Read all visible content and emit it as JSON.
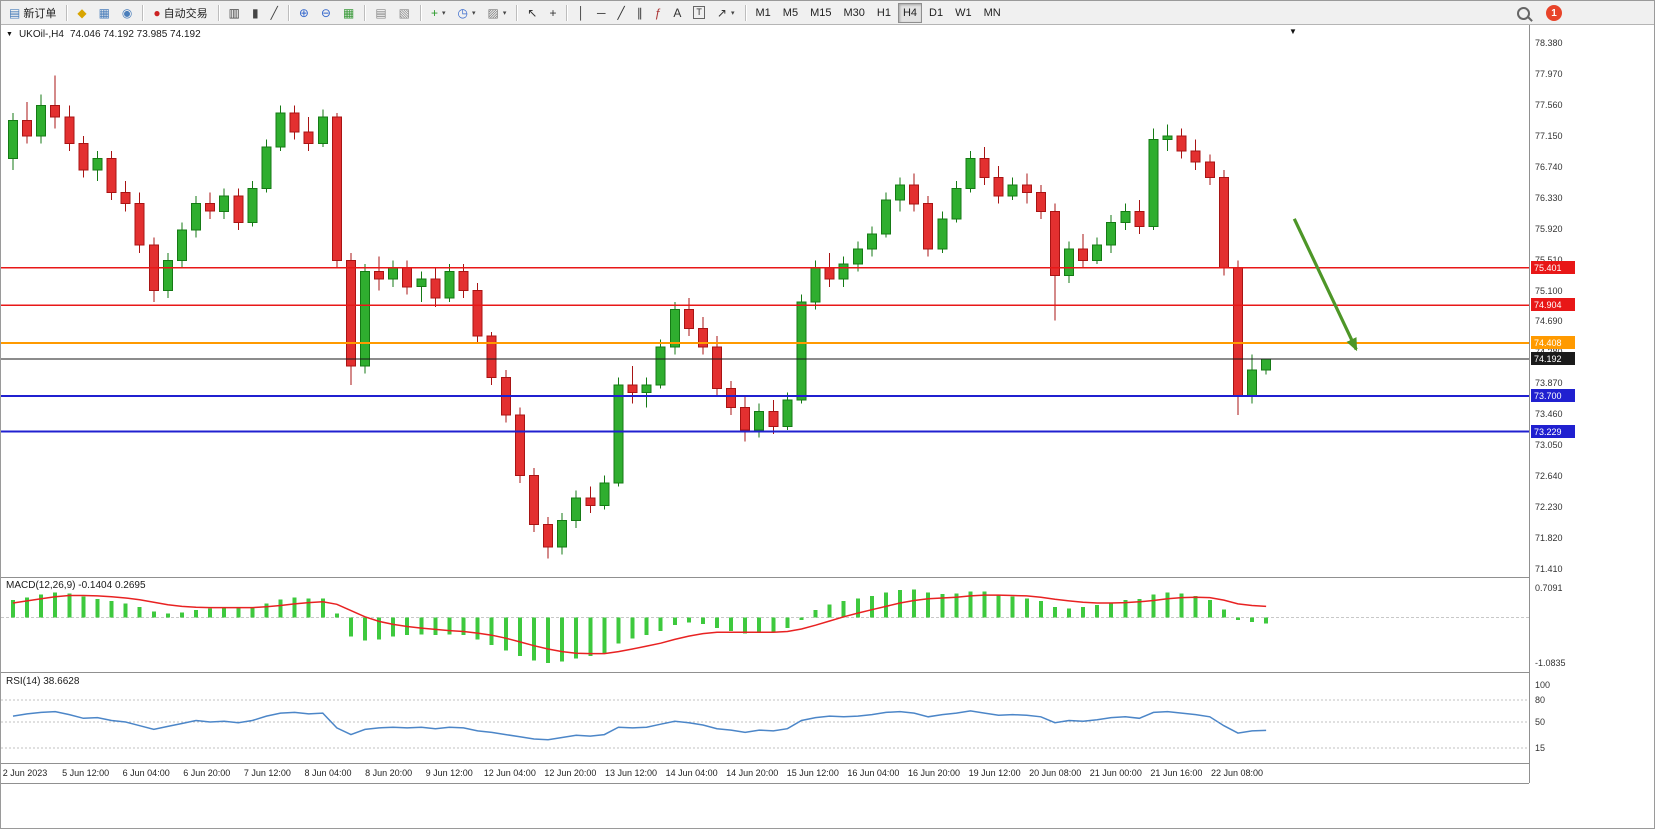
{
  "colors": {
    "up": "#2fae2f",
    "up_stroke": "#157a15",
    "down": "#e33030",
    "down_stroke": "#a81414",
    "macd_hist": "#3ec93e",
    "macd_signal": "#e82222",
    "rsi_line": "#4c86c8"
  },
  "toolbar": {
    "groups": [
      [
        {
          "name": "new-order-button",
          "icon": "new-order-icon",
          "glyph": "▤",
          "color": "#4a7ebb",
          "label": "新订单"
        }
      ],
      [
        {
          "name": "profile-button",
          "icon": "profile-icon",
          "glyph": "◆",
          "color": "#d8a400"
        },
        {
          "name": "charts-button",
          "icon": "charts-icon",
          "glyph": "▦",
          "color": "#4a7ebb"
        },
        {
          "name": "market-watch-button",
          "icon": "market-watch-icon",
          "glyph": "◉",
          "color": "#4a7ebb"
        }
      ],
      [
        {
          "name": "auto-trading-button",
          "icon": "auto-trading-icon",
          "glyph": "●",
          "color": "#cc2222",
          "label": "自动交易"
        }
      ],
      [
        {
          "name": "bar-chart-button",
          "icon": "bar-chart-icon",
          "glyph": "▥",
          "color": "#444444"
        },
        {
          "name": "candlestick-chart-button",
          "icon": "candlestick-icon",
          "glyph": "▮",
          "color": "#444444"
        },
        {
          "name": "line-chart-button",
          "icon": "line-chart-icon",
          "glyph": "╱",
          "color": "#444444"
        }
      ],
      [
        {
          "name": "zoom-in-button",
          "icon": "zoom-in-icon",
          "glyph": "⊕",
          "color": "#3366cc"
        },
        {
          "name": "zoom-out-button",
          "icon": "zoom-out-icon",
          "glyph": "⊖",
          "color": "#3366cc"
        },
        {
          "name": "tile-windows-button",
          "icon": "tile-windows-icon",
          "glyph": "▦",
          "color": "#3a9a3a"
        }
      ],
      [
        {
          "name": "arrange-windows-button",
          "icon": "arrange-windows-icon",
          "glyph": "▤",
          "color": "#888888"
        },
        {
          "name": "cascade-windows-button",
          "icon": "cascade-windows-icon",
          "glyph": "▧",
          "color": "#888888"
        }
      ],
      [
        {
          "name": "add-indicator-button",
          "icon": "add-indicator-icon",
          "glyph": "+",
          "color": "#2a9a2a",
          "dd": true
        },
        {
          "name": "period-button",
          "icon": "period-icon",
          "glyph": "◷",
          "color": "#3366cc",
          "dd": true
        },
        {
          "name": "template-button",
          "icon": "template-icon",
          "glyph": "▨",
          "color": "#777777",
          "dd": true
        }
      ],
      [
        {
          "name": "cursor-button",
          "icon": "cursor-icon",
          "glyph": "↖",
          "color": "#333333"
        },
        {
          "name": "crosshair-button",
          "icon": "crosshair-icon",
          "glyph": "+",
          "color": "#333333"
        }
      ],
      [
        {
          "name": "vertical-line-button",
          "icon": "vertical-line-icon",
          "glyph": "│",
          "color": "#333333"
        },
        {
          "name": "horizontal-line-button",
          "icon": "horizontal-line-icon",
          "glyph": "─",
          "color": "#333333"
        },
        {
          "name": "trendline-button",
          "icon": "trendline-icon",
          "glyph": "╱",
          "color": "#333333"
        },
        {
          "name": "channel-button",
          "icon": "channel-icon",
          "glyph": "∥",
          "color": "#333333"
        },
        {
          "name": "fibonacci-button",
          "icon": "fibonacci-icon",
          "glyph": "ƒ",
          "color": "#aa3333"
        },
        {
          "name": "text-button",
          "icon": "text-icon",
          "glyph": "A",
          "color": "#333333"
        },
        {
          "name": "text-label-button",
          "icon": "text-label-icon",
          "glyph": "T",
          "color": "#333333",
          "boxed": true
        },
        {
          "name": "arrows-button",
          "icon": "arrows-icon",
          "glyph": "↗",
          "color": "#333333",
          "dd": true
        }
      ],
      [
        {
          "name": "timeframe-m1-button",
          "label": "M1"
        },
        {
          "name": "timeframe-m5-button",
          "label": "M5"
        },
        {
          "name": "timeframe-m15-button",
          "label": "M15"
        },
        {
          "name": "timeframe-m30-button",
          "label": "M30"
        },
        {
          "name": "timeframe-h1-button",
          "label": "H1"
        },
        {
          "name": "timeframe-h4-button",
          "label": "H4",
          "active": true
        },
        {
          "name": "timeframe-d1-button",
          "label": "D1"
        },
        {
          "name": "timeframe-w1-button",
          "label": "W1"
        },
        {
          "name": "timeframe-mn-button",
          "label": "MN"
        }
      ]
    ],
    "right": [
      {
        "name": "search-button",
        "kind": "search"
      },
      {
        "name": "notification-badge",
        "kind": "badge",
        "label": "1"
      }
    ]
  },
  "chart": {
    "header_symbol": "UKOil-,H4",
    "header_ohlc": "74.046 74.192 73.985 74.192",
    "y_axis": [
      "78.380",
      "77.970",
      "77.560",
      "77.150",
      "76.740",
      "76.330",
      "75.920",
      "75.510",
      "75.100",
      "74.690",
      "74.280",
      "73.870",
      "73.460",
      "73.050",
      "72.640",
      "72.230",
      "71.820",
      "71.410"
    ],
    "x_labels": [
      "2 Jun 2023",
      "5 Jun 12:00",
      "6 Jun 04:00",
      "6 Jun 20:00",
      "7 Jun 12:00",
      "8 Jun 04:00",
      "8 Jun 20:00",
      "9 Jun 12:00",
      "12 Jun 04:00",
      "12 Jun 20:00",
      "13 Jun 12:00",
      "14 Jun 04:00",
      "14 Jun 20:00",
      "15 Jun 12:00",
      "16 Jun 04:00",
      "16 Jun 20:00",
      "19 Jun 12:00",
      "20 Jun 08:00",
      "21 Jun 00:00",
      "21 Jun 16:00",
      "22 Jun 08:00"
    ],
    "price_lines": [
      {
        "price": 75.401,
        "label": "75.401",
        "color": "#e81717",
        "width": 1.4
      },
      {
        "price": 74.904,
        "label": "74.904",
        "color": "#e81717",
        "width": 1.4
      },
      {
        "price": 74.408,
        "label": "74.408",
        "color": "#ff9a00",
        "width": 2
      },
      {
        "price": 74.192,
        "label": "74.192",
        "color": "#1a1a1a",
        "width": 1,
        "is_current_price": true
      },
      {
        "price": 73.7,
        "label": "73.700",
        "color": "#2020d0",
        "width": 2
      },
      {
        "price": 73.229,
        "label": "73.229",
        "color": "#2020d0",
        "width": 2
      }
    ],
    "arrow": {
      "from_bar": 91,
      "from_price": 76.05,
      "to_bar": 95.4,
      "to_price": 74.32,
      "color": "#4d9627"
    }
  },
  "macd": {
    "header": "MACD(12,26,9) -0.1404 0.2695",
    "axis": [
      "0.7091",
      "-1.0835"
    ]
  },
  "rsi": {
    "header": "RSI(14) 38.6628",
    "axis": [
      "100",
      "80",
      "50",
      "15"
    ],
    "levels": [
      80,
      50,
      15
    ]
  },
  "chart_data": {
    "type": "candlestick",
    "symbol": "UKOil-",
    "period": "H4",
    "main": {
      "type": "candlestick",
      "ylim": [
        71.41,
        78.38
      ],
      "ohlc": [
        [
          76.85,
          77.45,
          76.7,
          77.35
        ],
        [
          77.35,
          77.6,
          77.05,
          77.15
        ],
        [
          77.15,
          77.7,
          77.05,
          77.55
        ],
        [
          77.55,
          77.95,
          77.25,
          77.4
        ],
        [
          77.4,
          77.55,
          76.95,
          77.05
        ],
        [
          77.05,
          77.15,
          76.6,
          76.7
        ],
        [
          76.7,
          76.95,
          76.55,
          76.85
        ],
        [
          76.85,
          76.95,
          76.3,
          76.4
        ],
        [
          76.4,
          76.55,
          76.15,
          76.25
        ],
        [
          76.25,
          76.4,
          75.6,
          75.7
        ],
        [
          75.7,
          75.8,
          74.95,
          75.1
        ],
        [
          75.1,
          75.6,
          75.0,
          75.5
        ],
        [
          75.5,
          76.0,
          75.4,
          75.9
        ],
        [
          75.9,
          76.35,
          75.8,
          76.25
        ],
        [
          76.25,
          76.4,
          76.05,
          76.15
        ],
        [
          76.15,
          76.45,
          76.05,
          76.35
        ],
        [
          76.35,
          76.45,
          75.9,
          76.0
        ],
        [
          76.0,
          76.55,
          75.95,
          76.45
        ],
        [
          76.45,
          77.1,
          76.4,
          77.0
        ],
        [
          77.0,
          77.55,
          76.95,
          77.45
        ],
        [
          77.45,
          77.55,
          77.1,
          77.2
        ],
        [
          77.2,
          77.4,
          76.95,
          77.05
        ],
        [
          77.05,
          77.5,
          77.0,
          77.4
        ],
        [
          77.4,
          77.45,
          75.4,
          75.5
        ],
        [
          75.5,
          75.6,
          73.85,
          74.1
        ],
        [
          74.1,
          75.45,
          74.0,
          75.35
        ],
        [
          75.35,
          75.55,
          75.1,
          75.25
        ],
        [
          75.25,
          75.5,
          75.15,
          75.4
        ],
        [
          75.4,
          75.5,
          75.05,
          75.15
        ],
        [
          75.15,
          75.35,
          74.95,
          75.25
        ],
        [
          75.25,
          75.4,
          74.88,
          75.0
        ],
        [
          75.0,
          75.45,
          74.95,
          75.35
        ],
        [
          75.35,
          75.45,
          75.0,
          75.1
        ],
        [
          75.1,
          75.2,
          74.4,
          74.5
        ],
        [
          74.5,
          74.55,
          73.85,
          73.95
        ],
        [
          73.95,
          74.05,
          73.35,
          73.45
        ],
        [
          73.45,
          73.55,
          72.55,
          72.65
        ],
        [
          72.65,
          72.75,
          71.9,
          72.0
        ],
        [
          72.0,
          72.1,
          71.55,
          71.7
        ],
        [
          71.7,
          72.15,
          71.6,
          72.05
        ],
        [
          72.05,
          72.45,
          71.95,
          72.35
        ],
        [
          72.35,
          72.5,
          72.15,
          72.25
        ],
        [
          72.25,
          72.65,
          72.2,
          72.55
        ],
        [
          72.55,
          73.95,
          72.5,
          73.85
        ],
        [
          73.85,
          74.1,
          73.6,
          73.75
        ],
        [
          73.75,
          73.95,
          73.55,
          73.85
        ],
        [
          73.85,
          74.45,
          73.8,
          74.35
        ],
        [
          74.35,
          74.95,
          74.25,
          74.85
        ],
        [
          74.85,
          75.0,
          74.5,
          74.6
        ],
        [
          74.6,
          74.75,
          74.25,
          74.35
        ],
        [
          74.35,
          74.5,
          73.7,
          73.8
        ],
        [
          73.8,
          73.9,
          73.45,
          73.55
        ],
        [
          73.55,
          73.7,
          73.1,
          73.25
        ],
        [
          73.25,
          73.6,
          73.15,
          73.5
        ],
        [
          73.5,
          73.65,
          73.2,
          73.3
        ],
        [
          73.3,
          73.75,
          73.25,
          73.65
        ],
        [
          73.65,
          75.05,
          73.6,
          74.95
        ],
        [
          74.95,
          75.5,
          74.85,
          75.4
        ],
        [
          75.4,
          75.6,
          75.15,
          75.25
        ],
        [
          75.25,
          75.55,
          75.15,
          75.45
        ],
        [
          75.45,
          75.75,
          75.35,
          75.65
        ],
        [
          75.65,
          75.95,
          75.55,
          75.85
        ],
        [
          75.85,
          76.4,
          75.8,
          76.3
        ],
        [
          76.3,
          76.6,
          76.15,
          76.5
        ],
        [
          76.5,
          76.65,
          76.15,
          76.25
        ],
        [
          76.25,
          76.35,
          75.55,
          75.65
        ],
        [
          75.65,
          76.15,
          75.6,
          76.05
        ],
        [
          76.05,
          76.55,
          76.0,
          76.45
        ],
        [
          76.45,
          76.95,
          76.4,
          76.85
        ],
        [
          76.85,
          77.0,
          76.5,
          76.6
        ],
        [
          76.6,
          76.75,
          76.25,
          76.35
        ],
        [
          76.35,
          76.6,
          76.3,
          76.5
        ],
        [
          76.5,
          76.65,
          76.25,
          76.4
        ],
        [
          76.4,
          76.5,
          76.05,
          76.15
        ],
        [
          76.15,
          76.25,
          74.7,
          75.3
        ],
        [
          75.3,
          75.75,
          75.2,
          75.65
        ],
        [
          75.65,
          75.85,
          75.4,
          75.5
        ],
        [
          75.5,
          75.8,
          75.45,
          75.7
        ],
        [
          75.7,
          76.1,
          75.6,
          76.0
        ],
        [
          76.0,
          76.25,
          75.9,
          76.15
        ],
        [
          76.15,
          76.3,
          75.85,
          75.95
        ],
        [
          75.95,
          77.25,
          75.9,
          77.1
        ],
        [
          77.1,
          77.3,
          76.95,
          77.15
        ],
        [
          77.15,
          77.25,
          76.85,
          76.95
        ],
        [
          76.95,
          77.1,
          76.7,
          76.8
        ],
        [
          76.8,
          76.9,
          76.5,
          76.6
        ],
        [
          76.6,
          76.7,
          75.3,
          75.4
        ],
        [
          75.4,
          75.5,
          73.45,
          73.7
        ],
        [
          73.7,
          74.25,
          73.6,
          74.05
        ],
        [
          74.046,
          74.192,
          73.985,
          74.192
        ]
      ]
    },
    "macd": {
      "type": "bar+line",
      "scale": [
        0.7091,
        -1.0835
      ],
      "histogram": [
        0.42,
        0.48,
        0.55,
        0.6,
        0.58,
        0.5,
        0.45,
        0.4,
        0.34,
        0.26,
        0.15,
        0.1,
        0.12,
        0.18,
        0.22,
        0.24,
        0.24,
        0.26,
        0.34,
        0.44,
        0.48,
        0.46,
        0.46,
        0.1,
        -0.45,
        -0.55,
        -0.52,
        -0.45,
        -0.42,
        -0.4,
        -0.42,
        -0.4,
        -0.42,
        -0.52,
        -0.65,
        -0.78,
        -0.92,
        -1.02,
        -1.08,
        -1.05,
        -0.98,
        -0.92,
        -0.85,
        -0.62,
        -0.5,
        -0.42,
        -0.32,
        -0.18,
        -0.12,
        -0.15,
        -0.25,
        -0.32,
        -0.38,
        -0.36,
        -0.34,
        -0.25,
        -0.05,
        0.18,
        0.32,
        0.4,
        0.46,
        0.52,
        0.6,
        0.66,
        0.67,
        0.6,
        0.56,
        0.58,
        0.63,
        0.62,
        0.55,
        0.5,
        0.46,
        0.4,
        0.25,
        0.22,
        0.25,
        0.3,
        0.36,
        0.42,
        0.45,
        0.55,
        0.6,
        0.58,
        0.52,
        0.42,
        0.2,
        -0.05,
        -0.1,
        -0.14
      ],
      "signal": [
        0.35,
        0.4,
        0.45,
        0.5,
        0.53,
        0.53,
        0.52,
        0.5,
        0.47,
        0.43,
        0.37,
        0.31,
        0.27,
        0.25,
        0.24,
        0.24,
        0.24,
        0.24,
        0.26,
        0.29,
        0.33,
        0.36,
        0.38,
        0.32,
        0.17,
        0.02,
        -0.09,
        -0.16,
        -0.21,
        -0.25,
        -0.28,
        -0.31,
        -0.33,
        -0.37,
        -0.42,
        -0.49,
        -0.58,
        -0.67,
        -0.75,
        -0.81,
        -0.85,
        -0.86,
        -0.86,
        -0.81,
        -0.75,
        -0.68,
        -0.61,
        -0.52,
        -0.44,
        -0.38,
        -0.35,
        -0.35,
        -0.35,
        -0.35,
        -0.35,
        -0.33,
        -0.27,
        -0.18,
        -0.08,
        0.02,
        0.11,
        0.19,
        0.27,
        0.35,
        0.41,
        0.45,
        0.47,
        0.49,
        0.52,
        0.54,
        0.54,
        0.53,
        0.52,
        0.49,
        0.44,
        0.4,
        0.37,
        0.35,
        0.35,
        0.36,
        0.38,
        0.41,
        0.45,
        0.48,
        0.49,
        0.48,
        0.42,
        0.33,
        0.29,
        0.27
      ]
    },
    "rsi": {
      "type": "line",
      "ylim": [
        0,
        100
      ],
      "values": [
        58,
        61,
        63,
        64,
        60,
        55,
        56,
        52,
        50,
        45,
        40,
        44,
        48,
        52,
        50,
        51,
        49,
        52,
        58,
        62,
        63,
        61,
        62,
        42,
        33,
        40,
        42,
        43,
        42,
        43,
        41,
        43,
        42,
        38,
        36,
        33,
        30,
        27,
        26,
        29,
        32,
        31,
        33,
        43,
        42,
        43,
        47,
        51,
        49,
        46,
        41,
        39,
        36,
        39,
        38,
        41,
        52,
        56,
        58,
        57,
        58,
        60,
        63,
        64,
        62,
        57,
        60,
        62,
        65,
        62,
        59,
        60,
        59,
        57,
        49,
        52,
        51,
        53,
        56,
        57,
        55,
        63,
        64,
        62,
        60,
        57,
        45,
        35,
        38,
        38.7
      ]
    }
  }
}
